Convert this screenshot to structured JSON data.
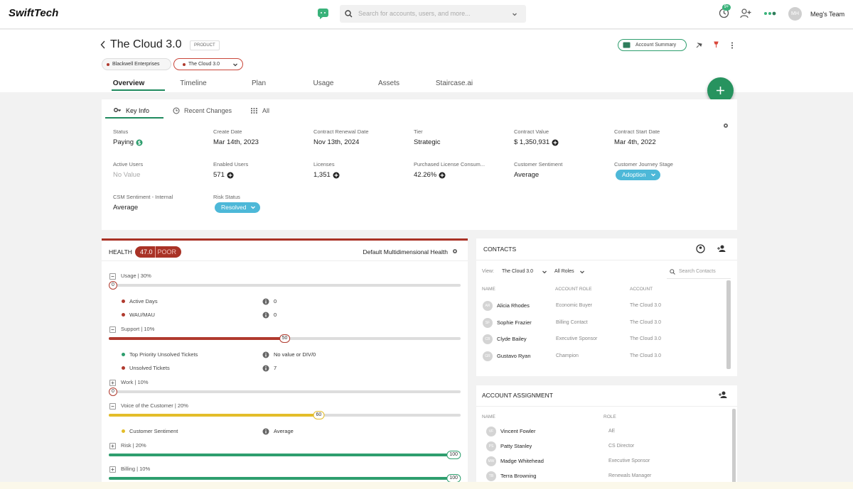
{
  "header": {
    "brand": "SwiftTech",
    "search_placeholder": "Search for accounts, users, and more...",
    "notification_count": "9+",
    "user_initials": "MH",
    "team": "Meg's Team"
  },
  "page": {
    "title": "The Cloud 3.0",
    "type_badge": "PRODUCT",
    "account_summary": "Account Summary",
    "breadcrumbs": [
      "Blackwell Enterprises",
      "The Cloud 3.0"
    ],
    "tabs": [
      "Overview",
      "Timeline",
      "Plan",
      "Usage",
      "Assets",
      "Staircase.ai"
    ]
  },
  "key_info": {
    "tabs": [
      "Key Info",
      "Recent Changes",
      "All"
    ],
    "fields": [
      {
        "label": "Status",
        "value": "Paying"
      },
      {
        "label": "Create Date",
        "value": "Mar 14th, 2023"
      },
      {
        "label": "Contract Renewal Date",
        "value": "Nov 13th, 2024"
      },
      {
        "label": "Tier",
        "value": "Strategic"
      },
      {
        "label": "Contract Value",
        "value": "$ 1,350,931"
      },
      {
        "label": "Contract Start Date",
        "value": "Mar 4th, 2022"
      },
      {
        "label": "Active Users",
        "value": "No Value"
      },
      {
        "label": "Enabled Users",
        "value": "571"
      },
      {
        "label": "Licenses",
        "value": "1,351"
      },
      {
        "label": "Purchased License Consum...",
        "value": "42.26%"
      },
      {
        "label": "Customer Sentiment",
        "value": "Average"
      },
      {
        "label": "Customer Journey Stage",
        "value": "Adoption"
      },
      {
        "label": "CSM Sentiment - Internal",
        "value": "Average"
      },
      {
        "label": "Risk Status",
        "value": "Resolved"
      }
    ]
  },
  "health": {
    "title": "HEALTH",
    "score": "47.0",
    "grade": "POOR",
    "scorecard": "Default Multidimensional Health",
    "groups": [
      {
        "label": "Usage | 30%",
        "score": 0,
        "color": "#b03a2e",
        "metrics": [
          {
            "name": "Active Days",
            "value": 0,
            "color": "#b03a2e"
          },
          {
            "name": "WAU/MAU",
            "value": 0,
            "color": "#b03a2e"
          }
        ]
      },
      {
        "label": "Support | 10%",
        "score": 50,
        "color": "#b03a2e",
        "metrics": [
          {
            "name": "Top Priority Unsolved Tickets",
            "value": "No value or DIV/0",
            "color": "#2e9e6e"
          },
          {
            "name": "Unsolved Tickets",
            "value": 7,
            "color": "#b03a2e"
          }
        ]
      },
      {
        "label": "Work | 10%",
        "score": 0,
        "color": "#b03a2e",
        "metrics": []
      },
      {
        "label": "Voice of the Customer | 20%",
        "score": 60,
        "color": "#e3bd2a",
        "metrics": [
          {
            "name": "Customer Sentiment",
            "value": "Average",
            "color": "#e3bd2a"
          }
        ]
      },
      {
        "label": "Risk | 20%",
        "score": 100,
        "color": "#2e9e6e",
        "metrics": []
      },
      {
        "label": "Billing | 10%",
        "score": 100,
        "color": "#2e9e6e",
        "metrics": []
      }
    ]
  },
  "contacts": {
    "title": "CONTACTS",
    "view_label": "View:",
    "view_filter": "The Cloud 3.0",
    "role_filter": "All Roles",
    "search_placeholder": "Search Contacts",
    "columns": [
      "NAME",
      "ACCOUNT ROLE",
      "ACCOUNT"
    ],
    "rows": [
      {
        "initials": "AR",
        "name": "Alicia Rhodes",
        "role": "Economic Buyer",
        "account": "The Cloud 3.0"
      },
      {
        "initials": "SF",
        "name": "Sophie Frazier",
        "role": "Billing Contact",
        "account": "The Cloud 3.0"
      },
      {
        "initials": "CB",
        "name": "Clyde Bailey",
        "role": "Executive Sponsor",
        "account": "The Cloud 3.0"
      },
      {
        "initials": "GR",
        "name": "Gustavo Ryan",
        "role": "Champion",
        "account": "The Cloud 3.0"
      }
    ]
  },
  "account_assignment": {
    "title": "ACCOUNT ASSIGNMENT",
    "columns": [
      "NAME",
      "ROLE"
    ],
    "rows": [
      {
        "initials": "VF",
        "name": "Vincent Fowler",
        "role": "AE"
      },
      {
        "initials": "PS",
        "name": "Patty Stanley",
        "role": "CS Director"
      },
      {
        "initials": "MW",
        "name": "Madge Whitehead",
        "role": "Executive Sponsor"
      },
      {
        "initials": "TB",
        "name": "Terra Browning",
        "role": "Renewals Manager"
      }
    ]
  }
}
